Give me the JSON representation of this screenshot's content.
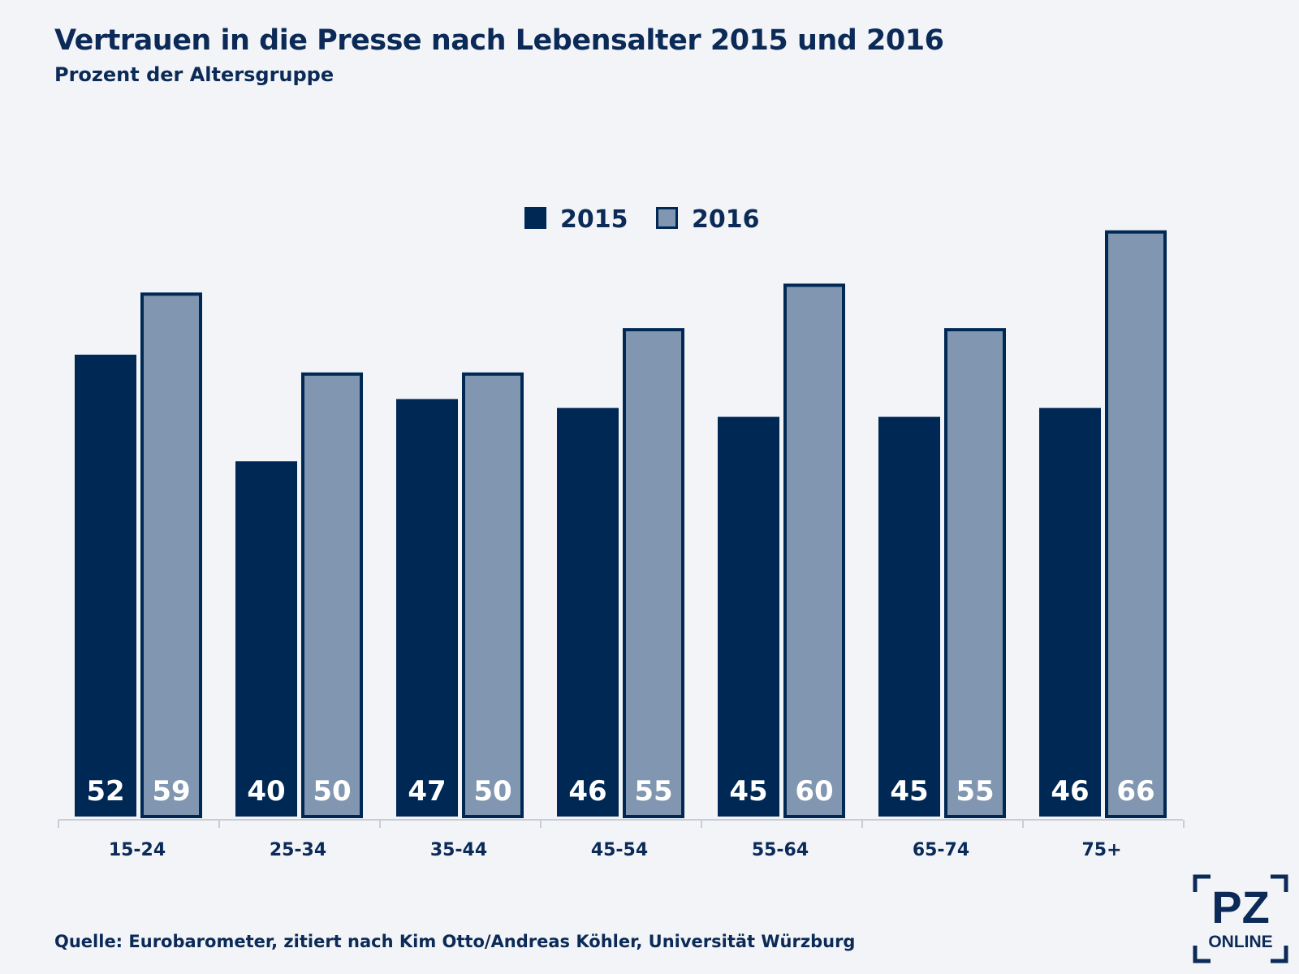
{
  "title": "Vertrauen in die Presse nach Lebensalter 2015 und 2016",
  "subtitle": "Prozent der Altersgruppe",
  "source": "Quelle: Eurobarometer, zitiert nach Kim Otto/Andreas Köhler, Universität Würzburg",
  "logo": {
    "line1": "PZ",
    "line2": "ONLINE"
  },
  "colors": {
    "background": "#f2f4f7",
    "text": "#0b2a57",
    "series_2015": "#002855",
    "series_2016": "#8196b0",
    "outline": "#002855",
    "axis": "#c9ced6"
  },
  "chart_data": {
    "type": "bar",
    "categories": [
      "15-24",
      "25-34",
      "35-44",
      "45-54",
      "55-64",
      "65-74",
      "75+"
    ],
    "series": [
      {
        "name": "2015",
        "values": [
          52,
          40,
          47,
          46,
          45,
          45,
          46
        ]
      },
      {
        "name": "2016",
        "values": [
          59,
          50,
          50,
          55,
          60,
          55,
          66
        ]
      }
    ],
    "xlabel": "",
    "ylabel": "",
    "ylim": [
      0,
      70
    ],
    "grid": false,
    "legend": "top-center",
    "data_labels": "inside-bottom"
  }
}
